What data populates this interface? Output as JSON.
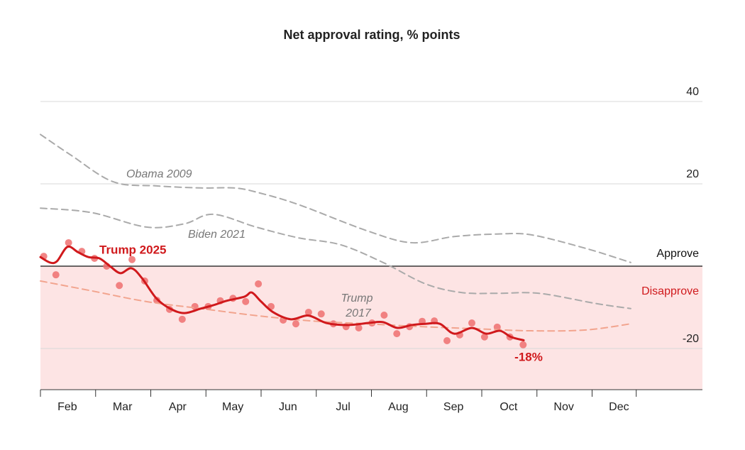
{
  "chart_data": {
    "type": "line",
    "title": "Net approval rating, % points",
    "xlim": [
      2,
      14
    ],
    "xticks": [
      {
        "value": 2.5,
        "label": "Feb"
      },
      {
        "value": 3.5,
        "label": "Mar"
      },
      {
        "value": 4.5,
        "label": "Apr"
      },
      {
        "value": 5.5,
        "label": "May"
      },
      {
        "value": 6.5,
        "label": "Jun"
      },
      {
        "value": 7.5,
        "label": "Jul"
      },
      {
        "value": 8.5,
        "label": "Aug"
      },
      {
        "value": 9.5,
        "label": "Sep"
      },
      {
        "value": 10.5,
        "label": "Oct"
      },
      {
        "value": 11.5,
        "label": "Nov"
      },
      {
        "value": 12.5,
        "label": "Dec"
      }
    ],
    "ylim": [
      -30,
      40
    ],
    "yticks": [
      -20,
      20,
      40
    ],
    "grid": true,
    "series": [
      {
        "name": "Obama 2009",
        "color": "#aaaaaa",
        "dash": true,
        "x": [
          2.0,
          2.55,
          3.32,
          4.1,
          4.91,
          5.51,
          5.91,
          6.67,
          7.92,
          8.73,
          9.5,
          10.27,
          10.9,
          11.89,
          12.7
        ],
        "values": [
          32,
          27,
          20.5,
          19.5,
          19,
          19,
          18,
          15,
          8.6,
          5.7,
          7.2,
          7.8,
          7.6,
          4.3,
          0.9
        ]
      },
      {
        "name": "Biden 2021",
        "color": "#aaaaaa",
        "dash": true,
        "x": [
          2.0,
          2.93,
          3.92,
          4.61,
          5.13,
          5.91,
          6.67,
          7.44,
          8.21,
          8.98,
          9.63,
          10.27,
          11.04,
          12.08,
          12.7
        ],
        "values": [
          14.1,
          13,
          9.5,
          10.3,
          12.6,
          9.5,
          6.9,
          5.2,
          0.9,
          -4.3,
          -6.4,
          -6.6,
          -6.6,
          -9.1,
          -10.3
        ]
      },
      {
        "name": "Trump 2017",
        "color": "#f2a48e",
        "dash": true,
        "x": [
          2.0,
          2.93,
          3.92,
          4.91,
          5.91,
          6.91,
          7.92,
          8.92,
          9.9,
          10.9,
          11.89,
          12.7
        ],
        "values": [
          -3.6,
          -6,
          -8.6,
          -10.3,
          -12,
          -13.3,
          -14,
          -14.7,
          -15.2,
          -15.7,
          -15.5,
          -14
        ]
      },
      {
        "name": "Trump 2025",
        "color": "#d0191c",
        "dash": false,
        "x": [
          2.0,
          2.17,
          2.3,
          2.49,
          2.68,
          2.87,
          3.07,
          3.26,
          3.45,
          3.65,
          3.84,
          4.1,
          4.35,
          4.61,
          4.91,
          5.13,
          5.38,
          5.7,
          5.83,
          6.0,
          6.22,
          6.54,
          6.86,
          7.18,
          7.57,
          7.95,
          8.21,
          8.47,
          8.73,
          8.98,
          9.24,
          9.5,
          9.82,
          10.08,
          10.33,
          10.53,
          10.76
        ],
        "values": [
          2.2,
          0.9,
          1.2,
          4.7,
          3.4,
          2.2,
          1.9,
          0,
          -1.7,
          -0.5,
          -2.9,
          -7.8,
          -10.3,
          -11.4,
          -10.3,
          -9.5,
          -8.4,
          -7.4,
          -6.4,
          -8.6,
          -11.2,
          -12.9,
          -12,
          -13.8,
          -14.3,
          -13.8,
          -13.6,
          -15,
          -14.3,
          -14,
          -14,
          -16.4,
          -15,
          -16.4,
          -15.7,
          -17.2,
          -18
        ]
      }
    ],
    "points": {
      "color": "#ee7070",
      "x": [
        2.06,
        2.28,
        2.51,
        2.75,
        2.98,
        3.2,
        3.43,
        3.66,
        3.89,
        4.11,
        4.34,
        4.57,
        4.8,
        5.04,
        5.26,
        5.49,
        5.72,
        5.95,
        6.18,
        6.4,
        6.63,
        6.86,
        7.09,
        7.31,
        7.54,
        7.77,
        8.01,
        8.23,
        8.46,
        8.69,
        8.92,
        9.14,
        9.37,
        9.6,
        9.82,
        10.05,
        10.28,
        10.51,
        10.75
      ],
      "values": [
        2.4,
        -2.1,
        5.7,
        3.6,
        1.9,
        0,
        -4.7,
        1.6,
        -3.6,
        -8.3,
        -10.5,
        -12.9,
        -9.8,
        -9.8,
        -8.4,
        -7.8,
        -8.6,
        -4.3,
        -9.8,
        -13.1,
        -14,
        -11.2,
        -11.6,
        -14,
        -14.7,
        -15,
        -13.8,
        -11.9,
        -16.4,
        -14.7,
        -13.4,
        -13.3,
        -18.1,
        -16.7,
        -13.8,
        -17.2,
        -14.8,
        -17.2,
        -19.1
      ]
    },
    "annotations": [
      "Approve",
      "Disapprove",
      "-18%"
    ]
  }
}
